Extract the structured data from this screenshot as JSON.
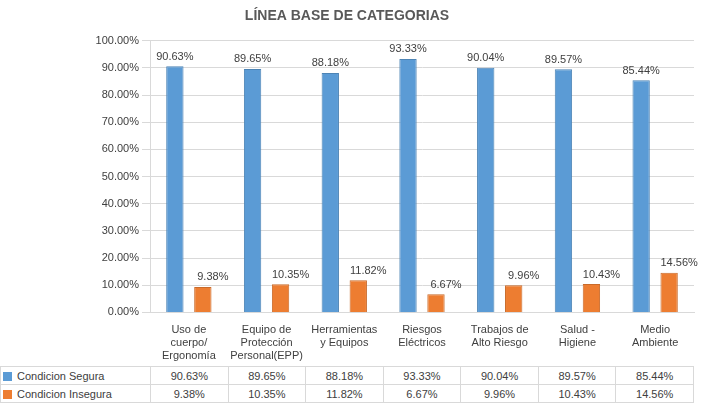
{
  "chart_data": {
    "type": "bar",
    "title": "LÍNEA BASE DE CATEGORIAS",
    "categories": [
      "Uso de cuerpo/ Ergonomía",
      "Equipo de Protección Personal(EPP)",
      "Herramientas y Equipos",
      "Riesgos Eléctricos",
      "Trabajos de Alto Riesgo",
      "Salud - Higiene",
      "Medio Ambiente"
    ],
    "series": [
      {
        "name": "Condicion Segura",
        "color": "#5b9bd5",
        "values": [
          90.63,
          89.65,
          88.18,
          93.33,
          90.04,
          89.57,
          85.44
        ],
        "value_labels": [
          "90.63%",
          "89.65%",
          "88.18%",
          "93.33%",
          "90.04%",
          "89.57%",
          "85.44%"
        ]
      },
      {
        "name": "Condicion Insegura",
        "color": "#ed7d31",
        "values": [
          9.38,
          10.35,
          11.82,
          6.67,
          9.96,
          10.43,
          14.56
        ],
        "value_labels": [
          "9.38%",
          "10.35%",
          "11.82%",
          "6.67%",
          "9.96%",
          "10.43%",
          "14.56%"
        ]
      }
    ],
    "ylim": [
      0,
      100
    ],
    "yticks": [
      {
        "value": 0,
        "label": "0.00%"
      },
      {
        "value": 10,
        "label": "10.00%"
      },
      {
        "value": 20,
        "label": "20.00%"
      },
      {
        "value": 30,
        "label": "30.00%"
      },
      {
        "value": 40,
        "label": "40.00%"
      },
      {
        "value": 50,
        "label": "50.00%"
      },
      {
        "value": 60,
        "label": "60.00%"
      },
      {
        "value": 70,
        "label": "70.00%"
      },
      {
        "value": 80,
        "label": "80.00%"
      },
      {
        "value": 90,
        "label": "90.00%"
      },
      {
        "value": 100,
        "label": "100.00%"
      }
    ],
    "grid": true,
    "legend": "bottom",
    "data_labels": true
  }
}
